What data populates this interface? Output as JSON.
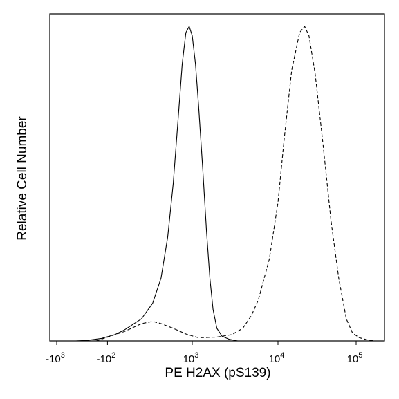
{
  "chart_data": {
    "type": "line",
    "title": "",
    "xlabel": "PE H2AX (pS139)",
    "ylabel": "Relative Cell Number",
    "x_scale": "biexponential",
    "x_ticks": [
      {
        "value": -1000,
        "base": "-10",
        "exp": "3"
      },
      {
        "value": -100,
        "base": "-10",
        "exp": "2"
      },
      {
        "value": 1000,
        "base": "10",
        "exp": "3"
      },
      {
        "value": 10000,
        "base": "10",
        "exp": "4"
      },
      {
        "value": 100000,
        "base": "10",
        "exp": "5"
      }
    ],
    "x_range": [
      -1600,
      220000
    ],
    "y_range": [
      0,
      1
    ],
    "y_ticks_shown": false,
    "grid": false,
    "legend": "none",
    "series": [
      {
        "style": "solid",
        "color": "#000000",
        "points": [
          [
            -500,
            0.0
          ],
          [
            -300,
            0.002
          ],
          [
            -150,
            0.008
          ],
          [
            -50,
            0.02
          ],
          [
            0,
            0.035
          ],
          [
            100,
            0.07
          ],
          [
            200,
            0.12
          ],
          [
            300,
            0.2
          ],
          [
            400,
            0.33
          ],
          [
            500,
            0.5
          ],
          [
            600,
            0.7
          ],
          [
            700,
            0.88
          ],
          [
            800,
            0.98
          ],
          [
            900,
            1.0
          ],
          [
            1000,
            0.97
          ],
          [
            1100,
            0.88
          ],
          [
            1200,
            0.75
          ],
          [
            1350,
            0.55
          ],
          [
            1500,
            0.35
          ],
          [
            1650,
            0.2
          ],
          [
            1800,
            0.1
          ],
          [
            2000,
            0.04
          ],
          [
            2300,
            0.015
          ],
          [
            2800,
            0.005
          ],
          [
            3500,
            0.0
          ]
        ]
      },
      {
        "style": "dashed",
        "color": "#000000",
        "points": [
          [
            -200,
            0.0
          ],
          [
            0,
            0.03
          ],
          [
            100,
            0.055
          ],
          [
            200,
            0.062
          ],
          [
            300,
            0.055
          ],
          [
            500,
            0.04
          ],
          [
            800,
            0.022
          ],
          [
            1200,
            0.01
          ],
          [
            2000,
            0.012
          ],
          [
            3000,
            0.02
          ],
          [
            4000,
            0.04
          ],
          [
            5000,
            0.08
          ],
          [
            6000,
            0.13
          ],
          [
            8000,
            0.26
          ],
          [
            10000,
            0.44
          ],
          [
            12000,
            0.64
          ],
          [
            15000,
            0.86
          ],
          [
            19000,
            0.98
          ],
          [
            22000,
            1.0
          ],
          [
            25000,
            0.97
          ],
          [
            30000,
            0.85
          ],
          [
            38000,
            0.62
          ],
          [
            48000,
            0.38
          ],
          [
            60000,
            0.2
          ],
          [
            75000,
            0.07
          ],
          [
            90000,
            0.025
          ],
          [
            110000,
            0.01
          ],
          [
            140000,
            0.003
          ],
          [
            170000,
            0.0
          ]
        ]
      }
    ]
  }
}
